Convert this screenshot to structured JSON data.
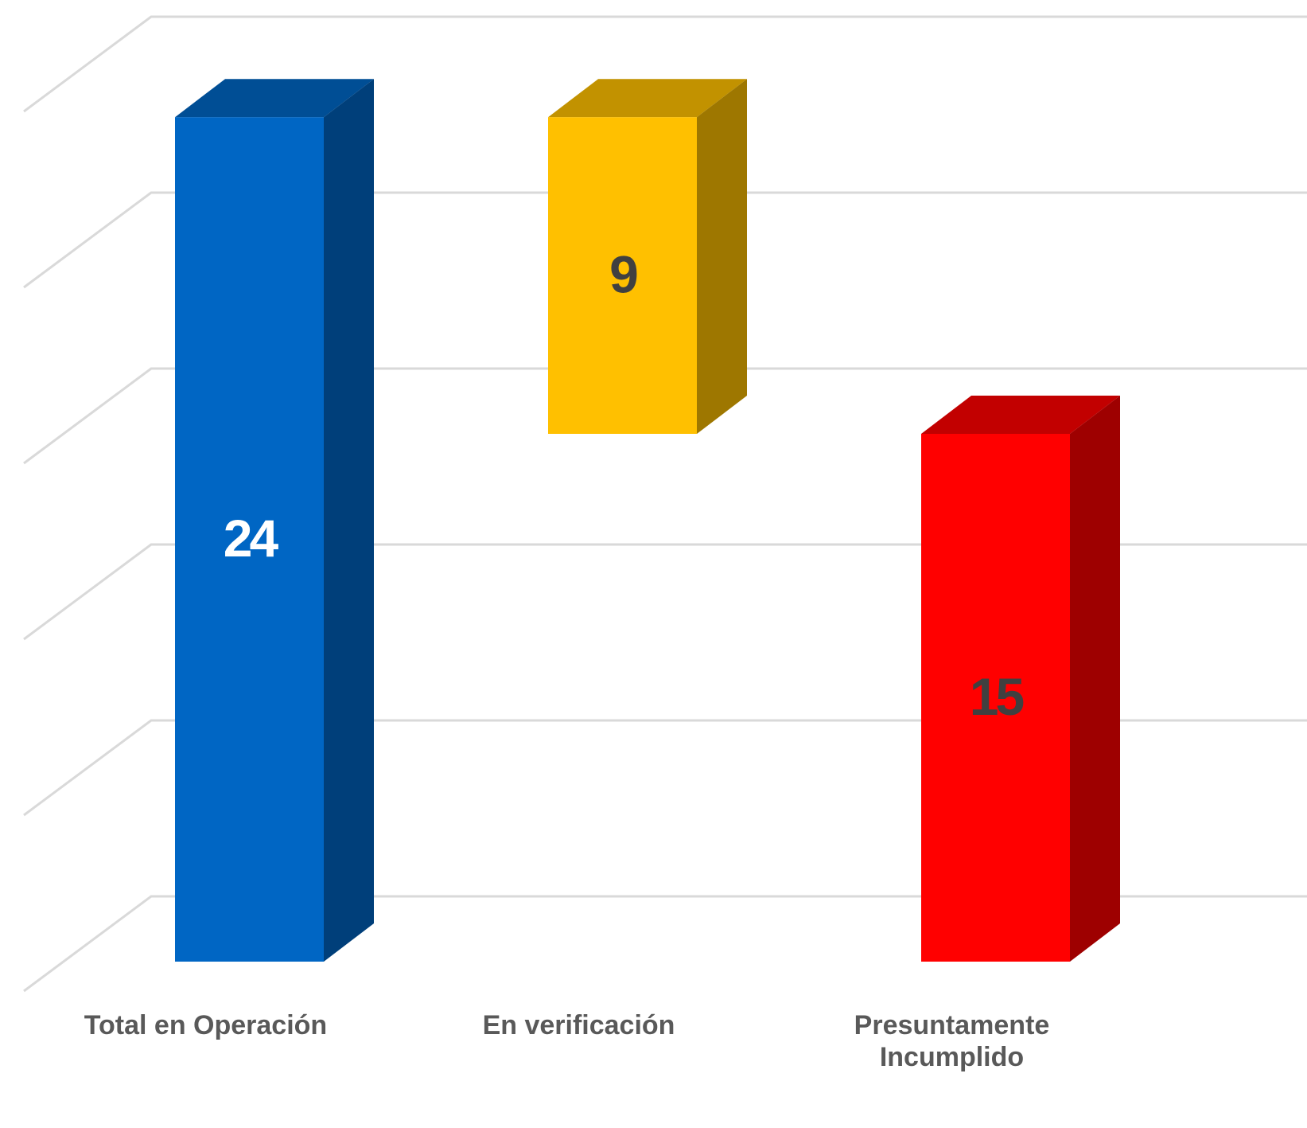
{
  "chart_data": {
    "type": "waterfall",
    "categories": [
      "Total en Operación",
      "En verificación",
      "Presuntamente Incumplido"
    ],
    "values": [
      24,
      9,
      15
    ],
    "measures": [
      "absolute",
      "decrease",
      "absolute"
    ],
    "colors": [
      "#0066c4",
      "#ffc000",
      "#ff0000"
    ],
    "label_colors": [
      "#ffffff",
      "#404040",
      "#404040"
    ],
    "ylim": [
      0,
      25
    ],
    "yticks": [
      0,
      5,
      10,
      15,
      20,
      25
    ],
    "grid": true
  }
}
